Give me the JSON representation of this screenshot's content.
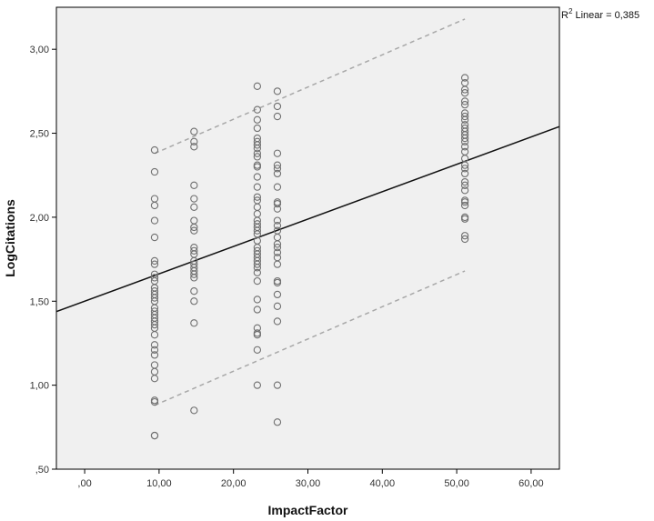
{
  "chart_data": {
    "type": "scatter",
    "xlabel": "ImpactFactor",
    "ylabel": "LogCitations",
    "xlim": [
      -3.8,
      63.8
    ],
    "ylim": [
      0.5,
      3.25
    ],
    "x_ticks": [
      0,
      10,
      20,
      30,
      40,
      50,
      60
    ],
    "x_tick_labels": [
      ",00",
      "10,00",
      "20,00",
      "30,00",
      "40,00",
      "50,00",
      "60,00"
    ],
    "y_ticks": [
      0.5,
      1.0,
      1.5,
      2.0,
      2.5,
      3.0
    ],
    "y_tick_labels": [
      ",50",
      "1,00",
      "1,50",
      "2,00",
      "2,50",
      "3,00"
    ],
    "grid": false,
    "r2_annotation": {
      "superscript": "2",
      "prefix": "R",
      "suffix": " Linear = 0,385"
    },
    "colors": {
      "plot_background": "#f0f0f0",
      "points": "#707070",
      "fit_line": "#111111",
      "confidence_lines": "#a8a8a8"
    },
    "fit_line": {
      "slope": 0.0163,
      "intercept": 1.5,
      "x_range": [
        -3.8,
        63.8
      ]
    },
    "confidence_lines": [
      {
        "x": [
          9.4,
          51.1
        ],
        "y": [
          2.38,
          3.18
        ]
      },
      {
        "x": [
          9.4,
          51.1
        ],
        "y": [
          0.88,
          1.68
        ]
      }
    ],
    "series": [
      {
        "x": 9.4,
        "y": [
          2.4,
          2.27,
          2.11,
          2.07,
          1.98,
          1.88,
          1.74,
          1.72,
          1.66,
          1.64,
          1.62,
          1.58,
          1.56,
          1.54,
          1.52,
          1.5,
          1.46,
          1.44,
          1.42,
          1.4,
          1.38,
          1.36,
          1.34,
          1.3,
          1.24,
          1.21,
          1.18,
          1.12,
          1.08,
          1.04,
          0.91,
          0.9,
          0.7,
          0.7
        ]
      },
      {
        "x": 14.7,
        "y": [
          2.51,
          2.45,
          2.42,
          2.19,
          2.11,
          2.06,
          1.98,
          1.94,
          1.92,
          1.82,
          1.8,
          1.78,
          1.74,
          1.72,
          1.7,
          1.68,
          1.66,
          1.64,
          1.56,
          1.5,
          1.37,
          0.85
        ]
      },
      {
        "x": 23.2,
        "y": [
          2.78,
          2.64,
          2.58,
          2.53,
          2.47,
          2.45,
          2.43,
          2.41,
          2.38,
          2.36,
          2.31,
          2.3,
          2.24,
          2.18,
          2.12,
          2.1,
          2.06,
          2.02,
          1.98,
          1.96,
          1.94,
          1.92,
          1.9,
          1.86,
          1.82,
          1.8,
          1.78,
          1.76,
          1.74,
          1.72,
          1.7,
          1.67,
          1.62,
          1.51,
          1.45,
          1.34,
          1.31,
          1.3,
          1.21,
          1.0
        ]
      },
      {
        "x": 25.9,
        "y": [
          2.75,
          2.66,
          2.6,
          2.38,
          2.31,
          2.29,
          2.26,
          2.18,
          2.09,
          2.08,
          2.05,
          1.98,
          1.95,
          1.92,
          1.88,
          1.84,
          1.82,
          1.79,
          1.76,
          1.72,
          1.62,
          1.61,
          1.54,
          1.47,
          1.38,
          1.0,
          0.78
        ]
      },
      {
        "x": 51.1,
        "y": [
          2.83,
          2.8,
          2.76,
          2.74,
          2.69,
          2.67,
          2.62,
          2.6,
          2.58,
          2.55,
          2.53,
          2.51,
          2.49,
          2.47,
          2.45,
          2.42,
          2.39,
          2.35,
          2.31,
          2.29,
          2.26,
          2.21,
          2.19,
          2.16,
          2.1,
          2.09,
          2.07,
          2.0,
          1.99,
          1.89,
          1.87
        ]
      }
    ]
  }
}
